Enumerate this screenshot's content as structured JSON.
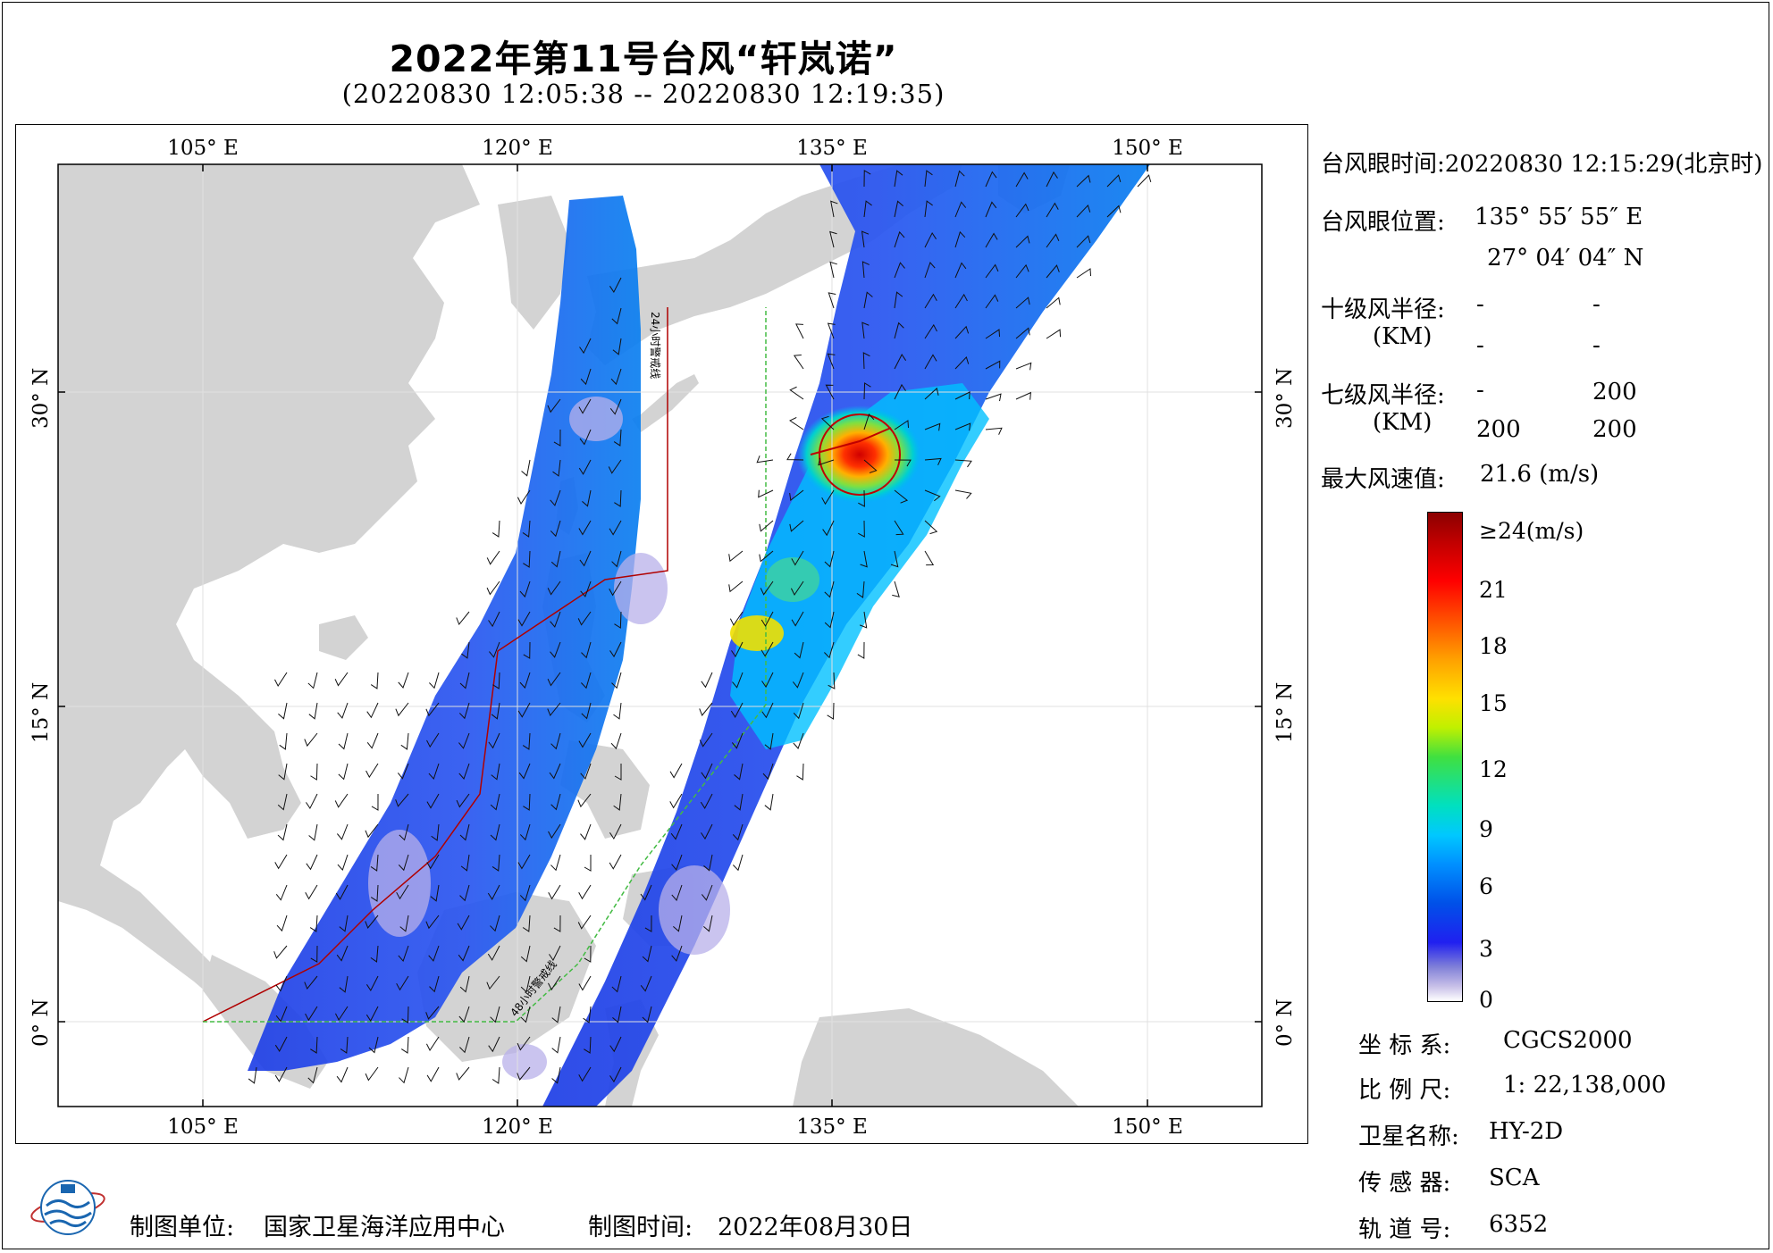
{
  "header": {
    "title": "2022年第11号台风“轩岚诺”",
    "subtitle": "(20220830 12:05:38 -- 20220830 12:19:35)"
  },
  "map": {
    "lon_labels": [
      "105° E",
      "120° E",
      "135° E",
      "150° E"
    ],
    "lat_labels": [
      "30° N",
      "15° N",
      "0° N"
    ],
    "track_label_1": "24小时警戒线",
    "track_label_2": "48小时警戒线",
    "colors": {
      "land": "#d3d3d3",
      "sea": "#ffffff",
      "track_red": "#b00000",
      "track_green": "#44bb44"
    }
  },
  "info": {
    "eye_time": "台风眼时间:20220830 12:15:29(北京时)",
    "eye_pos_label": "台风眼位置:",
    "eye_lon": "135° 55′ 55″ E",
    "eye_lat": "27° 04′ 04″ N",
    "r10_label": "十级风半径:",
    "r10_unit": "(KM)",
    "r10_values": [
      "-",
      "-",
      "-",
      "-"
    ],
    "r7_label": "七级风半径:",
    "r7_unit": "(KM)",
    "r7_values": [
      "-",
      "200",
      "200",
      "200"
    ],
    "max_wind_label": "最大风速值:",
    "max_wind_value": "21.6  (m/s)"
  },
  "legend": {
    "ticks": [
      "≥24(m/s)",
      "21",
      "18",
      "15",
      "12",
      "9",
      "6",
      "3",
      "0"
    ]
  },
  "meta": {
    "crs_label": "坐 标 系:",
    "crs_value": "CGCS2000",
    "scale_label": "比 例 尺:",
    "scale_value": "1: 22,138,000",
    "satellite_label": "卫星名称:",
    "satellite_value": "HY-2D",
    "sensor_label": "传 感 器:",
    "sensor_value": "SCA",
    "orbit_label": "轨 道 号:",
    "orbit_value": "6352"
  },
  "footer": {
    "producer_label": "制图单位:",
    "producer_value": "国家卫星海洋应用中心",
    "date_label": "制图时间:",
    "date_value": "2022年08月30日"
  },
  "logo_icon": "nsoas-logo-icon"
}
